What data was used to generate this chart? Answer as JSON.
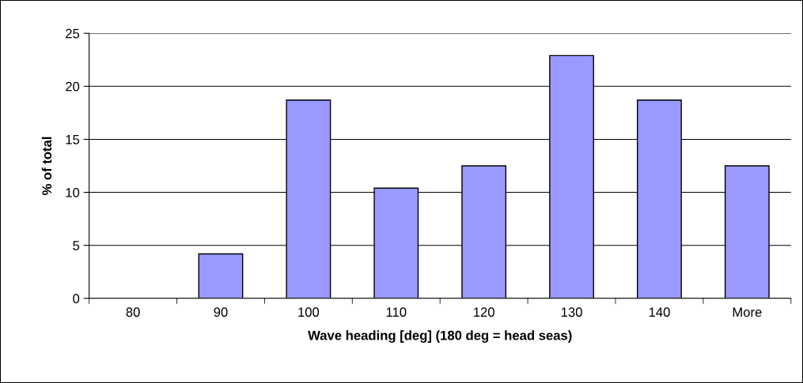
{
  "chart_data": {
    "type": "bar",
    "xlabel": "Wave heading [deg] (180 deg = head seas)",
    "ylabel": "% of total",
    "categories": [
      "80",
      "90",
      "100",
      "110",
      "120",
      "130",
      "140",
      "More"
    ],
    "values": [
      0,
      4.2,
      18.7,
      10.4,
      12.5,
      22.9,
      18.7,
      12.5
    ],
    "color": "#9999ff",
    "ylim": [
      0,
      25
    ],
    "yticks": [
      0,
      5,
      10,
      15,
      20,
      25
    ],
    "grid": "y",
    "legend": false
  }
}
